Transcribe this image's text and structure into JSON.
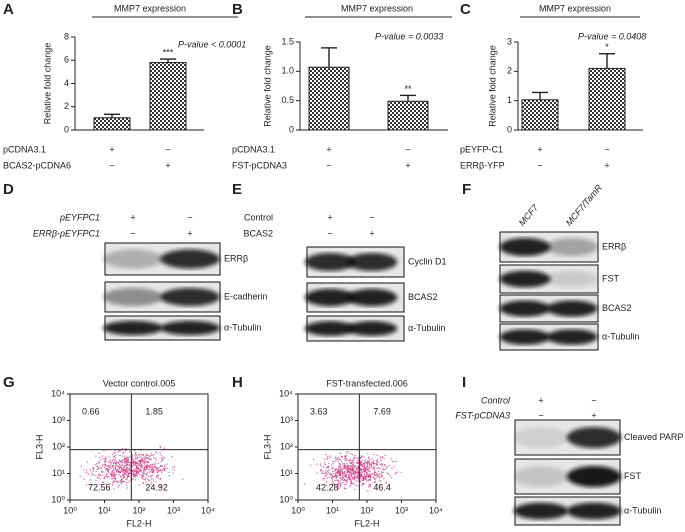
{
  "chart_data": [
    {
      "panel": "A",
      "type": "bar",
      "title": "MMP7 expression",
      "ylabel": "Relative fold change",
      "annotation": "P-value < 0.0001",
      "ylim": [
        0,
        8
      ],
      "yticks": [
        0,
        2,
        4,
        6,
        8
      ],
      "values": [
        1.05,
        5.8
      ],
      "errors": [
        0.3,
        0.3
      ],
      "significance": [
        null,
        "***"
      ],
      "conditions": [
        {
          "name": "pCDNA3.1",
          "signs": [
            "+",
            "−"
          ]
        },
        {
          "name": "BCAS2-pCDNA6",
          "signs": [
            "−",
            "+"
          ]
        }
      ]
    },
    {
      "panel": "B",
      "type": "bar",
      "title": "MMP7 expression",
      "ylabel": "Relative fold change",
      "annotation": "P-value = 0.0033",
      "ylim": [
        0,
        1.5
      ],
      "yticks": [
        0,
        0.5,
        {
          "value": 1,
          "label": "1.0"
        },
        1.5
      ],
      "values": [
        1.07,
        0.49
      ],
      "errors": [
        0.33,
        0.1
      ],
      "significance": [
        null,
        "**"
      ],
      "conditions": [
        {
          "name": "pCDNA3.1",
          "signs": [
            "+",
            "−"
          ]
        },
        {
          "name": "FST-pCDNA3",
          "signs": [
            "−",
            "+"
          ]
        }
      ]
    },
    {
      "panel": "C",
      "type": "bar",
      "title": "MMP7 expression",
      "ylabel": "Relative fold change",
      "annotation": "P-value = 0.0408",
      "ylim": [
        0,
        3
      ],
      "yticks": [
        0,
        1,
        2,
        3
      ],
      "values": [
        1.03,
        2.1
      ],
      "errors": [
        0.25,
        0.5
      ],
      "significance": [
        null,
        "*"
      ],
      "conditions": [
        {
          "name": "pEYFP-C1",
          "signs": [
            "+",
            "−"
          ]
        },
        {
          "name": "ERRβ-YFP",
          "signs": [
            "−",
            "+"
          ]
        }
      ]
    },
    {
      "panel": "G",
      "type": "quadrant",
      "title": "Vector control.005",
      "xlabel": "FL2-H",
      "ylabel": "FL3-H",
      "log": true,
      "color": "#d23c84",
      "xlim": [
        1,
        10000
      ],
      "ylim": [
        1,
        10000
      ],
      "xticks": [
        {
          "value": 1,
          "label": "10⁰"
        },
        {
          "value": 10,
          "label": "10¹"
        },
        {
          "value": 100,
          "label": "10²"
        },
        {
          "value": 1000,
          "label": "10³"
        },
        {
          "value": 10000,
          "label": "10⁴"
        }
      ],
      "yticks": [
        {
          "value": 1,
          "label": "10⁰"
        },
        {
          "value": 10,
          "label": "10¹"
        },
        {
          "value": 100,
          "label": "10²"
        },
        {
          "value": 1000,
          "label": "10³"
        },
        {
          "value": 10000,
          "label": "10⁴"
        }
      ],
      "gate": [
        60,
        80
      ],
      "quadrants": [
        0.66,
        1.85,
        72.56,
        24.92
      ]
    },
    {
      "panel": "H",
      "type": "quadrant",
      "title": "FST-transfected.006",
      "xlabel": "FL2-H",
      "ylabel": "FL3-H",
      "log": true,
      "color": "#d23c84",
      "xlim": [
        1,
        10000
      ],
      "ylim": [
        1,
        10000
      ],
      "xticks": [
        {
          "value": 1,
          "label": "10⁰"
        },
        {
          "value": 10,
          "label": "10¹"
        },
        {
          "value": 100,
          "label": "10²"
        },
        {
          "value": 1000,
          "label": "10³"
        },
        {
          "value": 10000,
          "label": "10⁴"
        }
      ],
      "yticks": [
        {
          "value": 1,
          "label": "10⁰"
        },
        {
          "value": 10,
          "label": "10¹"
        },
        {
          "value": 100,
          "label": "10²"
        },
        {
          "value": 1000,
          "label": "10³"
        },
        {
          "value": 10000,
          "label": "10⁴"
        }
      ],
      "gate": [
        60,
        80
      ],
      "quadrants": [
        3.63,
        7.69,
        42.28,
        46.4
      ]
    }
  ],
  "blots": [
    {
      "panel": "D",
      "conditions": [
        {
          "name": "pEYFPC1",
          "signs": [
            "+",
            "−"
          ]
        },
        {
          "name": "ERRβ-pEYFPC1",
          "signs": [
            "−",
            "+"
          ]
        }
      ],
      "bands": [
        "ERRβ",
        "E-cadherin",
        "α-Tubulin"
      ]
    },
    {
      "panel": "E",
      "conditions": [
        {
          "name": "Control",
          "signs": [
            "+",
            "−"
          ]
        },
        {
          "name": "BCAS2",
          "signs": [
            "−",
            "+"
          ]
        }
      ],
      "bands": [
        "Cyclin D1",
        "BCAS2",
        "α-Tubulin"
      ]
    },
    {
      "panel": "F",
      "lane_labels": [
        "MCF7",
        "MCF7/TamR"
      ],
      "bands": [
        "ERRβ",
        "FST",
        "BCAS2",
        "α-Tubulin"
      ]
    },
    {
      "panel": "I",
      "conditions": [
        {
          "name": "Control",
          "signs": [
            "+",
            "−"
          ]
        },
        {
          "name": "FST-pCDNA3",
          "signs": [
            "−",
            "+"
          ]
        }
      ],
      "bands": [
        "Cleaved PARP",
        "FST",
        "α-Tubulin"
      ]
    }
  ]
}
